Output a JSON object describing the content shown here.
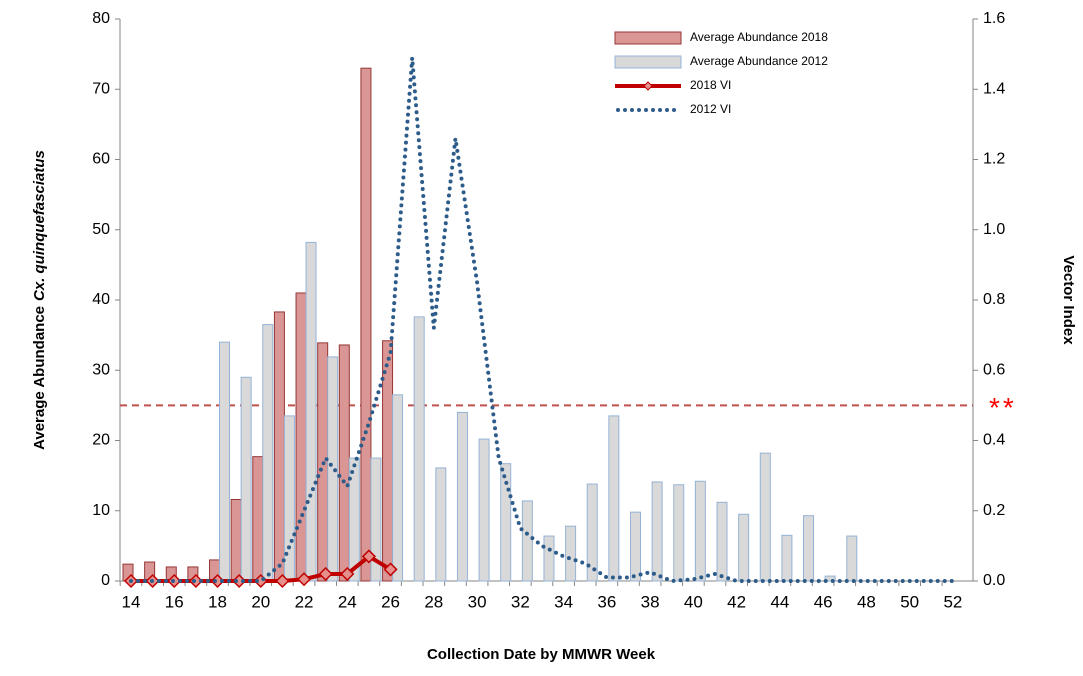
{
  "chart_data": {
    "type": "bar_line",
    "xlabel": "Collection Date by MMWR Week",
    "ylabel": [
      "Average Abundance",
      "Cx. quinquefasciatus"
    ],
    "y2label": "Vector Index",
    "categories": [
      14,
      null,
      16,
      null,
      18,
      null,
      20,
      null,
      22,
      null,
      24,
      null,
      26,
      null,
      28,
      null,
      30,
      null,
      32,
      null,
      34,
      null,
      36,
      null,
      38,
      null,
      40,
      null,
      42,
      null,
      44,
      null,
      46,
      null,
      48,
      null,
      50,
      null,
      52
    ],
    "series": [
      {
        "name": "Average Abundance 2018",
        "kind": "bar",
        "color": "#d99694",
        "edge": "#953735",
        "values": [
          2.4,
          2.7,
          2.0,
          2.0,
          3.0,
          11.6,
          17.7,
          38.3,
          41.0,
          33.9,
          33.6,
          73.0,
          34.2,
          null,
          null,
          null,
          null,
          null,
          null,
          null,
          null,
          null,
          null,
          null,
          null,
          null,
          null,
          null,
          null,
          null,
          null,
          null,
          null,
          null,
          null,
          null,
          null,
          null,
          null
        ]
      },
      {
        "name": "Average Abundance 2012",
        "kind": "bar",
        "color": "#d9d9d9",
        "edge": "#95b3d7",
        "values": [
          null,
          null,
          null,
          null,
          34.0,
          29.0,
          36.5,
          23.5,
          48.2,
          31.9,
          17.5,
          17.5,
          26.5,
          37.6,
          16.1,
          24.0,
          20.2,
          16.7,
          11.4,
          6.4,
          7.8,
          13.8,
          23.5,
          9.8,
          14.1,
          13.7,
          14.2,
          11.2,
          9.5,
          18.2,
          6.5,
          9.3,
          0.7,
          6.4,
          null,
          null,
          null,
          null,
          null
        ]
      },
      {
        "name": "2018 VI",
        "kind": "line",
        "axis": "y2",
        "color": "#c00000",
        "marker": "#e6908d",
        "values": [
          0,
          0,
          0,
          0,
          0,
          0,
          0,
          0,
          0.005,
          0.02,
          0.02,
          0.07,
          0.033,
          null,
          null,
          null,
          null,
          null,
          null,
          null,
          null,
          null,
          null,
          null,
          null,
          null,
          null,
          null,
          null,
          null,
          null,
          null,
          null,
          null,
          null,
          null,
          null,
          null,
          null
        ]
      },
      {
        "name": "2012 VI",
        "kind": "dotted",
        "axis": "y2",
        "color": "#2e5c8a",
        "values": [
          0,
          0,
          0,
          0,
          0,
          0,
          0,
          0.05,
          0.2,
          0.35,
          0.27,
          0.45,
          0.65,
          1.49,
          0.72,
          1.26,
          0.85,
          0.35,
          0.15,
          0.1,
          0.07,
          0.05,
          0.01,
          0.01,
          0.025,
          0,
          0.005,
          0.02,
          0,
          0,
          0,
          0,
          0,
          0,
          0,
          0,
          0,
          0,
          0
        ]
      }
    ],
    "ylim": [
      0,
      80
    ],
    "yticks": [
      0,
      10,
      20,
      30,
      40,
      50,
      60,
      70,
      80
    ],
    "y2lim": [
      0,
      1.6
    ],
    "y2ticks": [
      {
        "value": 0,
        "label": "0.0"
      },
      0.2,
      0.4,
      0.6,
      0.8,
      {
        "value": 1,
        "label": "1.0"
      },
      1.2,
      1.4,
      1.6
    ],
    "threshold": {
      "value": 0.5,
      "axis": "y2",
      "color": "#c0504d",
      "label": "**"
    },
    "legend": "top-right"
  }
}
